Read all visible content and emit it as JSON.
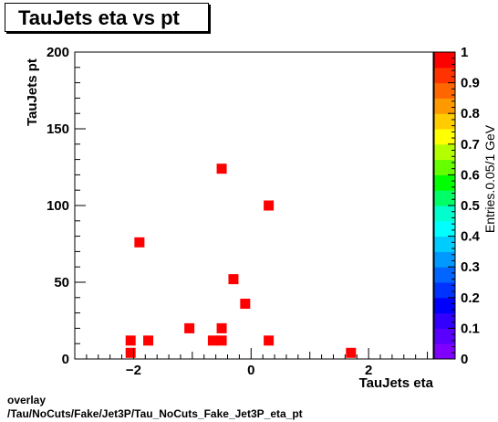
{
  "title": "TauJets eta vs pt",
  "footer": {
    "line1": "overlay",
    "line2": "/Tau/NoCuts/Fake/Jet3P/Tau_NoCuts_Fake_Jet3P_eta_pt"
  },
  "chart_data": {
    "type": "heatmap",
    "title": "TauJets eta vs pt",
    "xlabel": "TauJets eta",
    "ylabel": "TauJets pt",
    "zlabel": "Entries.0.05/1 GeV",
    "xlim": [
      -3,
      3.1
    ],
    "ylim": [
      0,
      200
    ],
    "zlim": [
      0,
      1
    ],
    "x_ticks": [
      -2,
      0,
      2
    ],
    "x_tick_labels": [
      "−2",
      "0",
      "2"
    ],
    "y_ticks": [
      0,
      50,
      100,
      150,
      200
    ],
    "z_ticks": [
      0,
      0.1,
      0.2,
      0.3,
      0.4,
      0.5,
      0.6,
      0.7,
      0.8,
      0.9,
      1
    ],
    "grid": false,
    "points": [
      {
        "eta": -0.5,
        "pt": 124
      },
      {
        "eta": 0.3,
        "pt": 100
      },
      {
        "eta": -1.9,
        "pt": 76
      },
      {
        "eta": -0.3,
        "pt": 52
      },
      {
        "eta": -0.1,
        "pt": 36
      },
      {
        "eta": -1.05,
        "pt": 20
      },
      {
        "eta": -0.5,
        "pt": 20
      },
      {
        "eta": -2.05,
        "pt": 12
      },
      {
        "eta": -1.75,
        "pt": 12
      },
      {
        "eta": -0.65,
        "pt": 12
      },
      {
        "eta": -0.5,
        "pt": 12
      },
      {
        "eta": 0.3,
        "pt": 12
      },
      {
        "eta": -2.05,
        "pt": 4
      },
      {
        "eta": 1.7,
        "pt": 4
      }
    ],
    "point_value": 1,
    "marker_color": "#ff0000"
  }
}
